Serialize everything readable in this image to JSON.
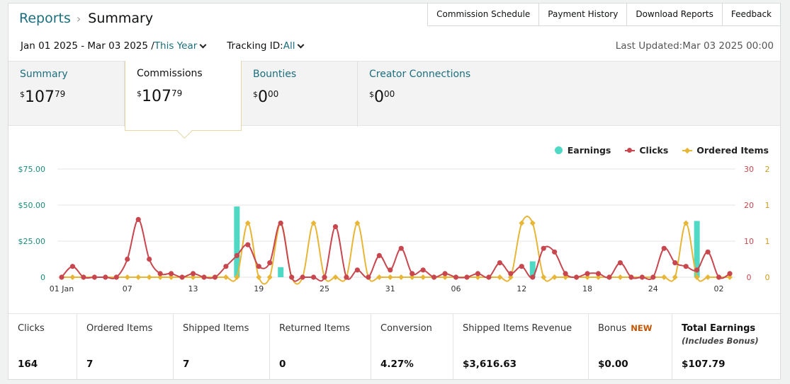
{
  "breadcrumb": {
    "parent": "Reports",
    "separator": "›",
    "current": "Summary"
  },
  "top_buttons": [
    "Commission Schedule",
    "Payment History",
    "Download Reports",
    "Feedback"
  ],
  "filters": {
    "date_range": "Jan 01 2025 - Mar 03 2025 /",
    "period": "This Year",
    "tracking_label": "Tracking ID:",
    "tracking_value": "All",
    "last_updated": "Last Updated:Mar 03 2025 00:00"
  },
  "tabs": [
    {
      "label": "Summary",
      "dollars": "107",
      "cents": "79",
      "currency": "$"
    },
    {
      "label": "Commissions",
      "dollars": "107",
      "cents": "79",
      "currency": "$"
    },
    {
      "label": "Bounties",
      "dollars": "0",
      "cents": "00",
      "currency": "$"
    },
    {
      "label": "Creator Connections",
      "dollars": "0",
      "cents": "00",
      "currency": "$"
    }
  ],
  "colors": {
    "earnings": "#4fd8c4",
    "clicks": "#c8474f",
    "ordered": "#e8b637",
    "teal_text": "#1b6e7e",
    "grid": "#e6e6e6"
  },
  "chart_data": {
    "type": "line",
    "legend": [
      "Earnings",
      "Clicks",
      "Ordered Items"
    ],
    "y_left": {
      "ticks": [
        "$75.00",
        "$50.00",
        "$25.00",
        "0"
      ],
      "range": [
        0,
        75
      ]
    },
    "y_right_clicks": {
      "ticks": [
        "30",
        "20",
        "10",
        "0"
      ],
      "range": [
        0,
        30
      ]
    },
    "y_right_orders": {
      "ticks": [
        "2",
        "1",
        "1",
        "0"
      ],
      "range": [
        0,
        2
      ]
    },
    "x_ticks": [
      {
        "label": "01 Jan",
        "day": 0
      },
      {
        "label": "07",
        "day": 6
      },
      {
        "label": "13",
        "day": 12
      },
      {
        "label": "19",
        "day": 18
      },
      {
        "label": "25",
        "day": 24
      },
      {
        "label": "31",
        "day": 30
      },
      {
        "label": "06",
        "day": 36
      },
      {
        "label": "12",
        "day": 42
      },
      {
        "label": "18",
        "day": 48
      },
      {
        "label": "24",
        "day": 54
      },
      {
        "label": "02",
        "day": 60
      }
    ],
    "days": 62,
    "clicks": [
      0,
      3,
      0,
      0,
      0,
      0,
      5,
      16,
      5,
      1,
      1,
      0,
      1,
      0,
      0,
      3,
      6,
      9,
      3,
      4,
      15,
      0,
      0,
      0,
      0,
      14,
      0,
      2,
      0,
      6,
      2,
      8,
      1,
      2,
      0,
      1,
      0,
      0,
      1,
      0,
      4,
      1,
      3,
      0,
      8,
      7,
      1,
      0,
      1,
      1,
      0,
      4,
      0,
      0,
      0,
      8,
      4,
      3,
      2,
      7,
      0,
      1
    ],
    "ordered_items": [
      0,
      0,
      0,
      0,
      0,
      0,
      0,
      0,
      0,
      0,
      0,
      0,
      0,
      0,
      0,
      0,
      0,
      1,
      0,
      0,
      1,
      0,
      0,
      1,
      0,
      0,
      0,
      1,
      0,
      0,
      0,
      0,
      0,
      0,
      0,
      0,
      0,
      0,
      0,
      0,
      0,
      0,
      1,
      1,
      0,
      0,
      0,
      0,
      0,
      0,
      0,
      0,
      0,
      0,
      0,
      0,
      0,
      1,
      0,
      0,
      0,
      0
    ],
    "earnings": [
      {
        "day": 16,
        "value": 49
      },
      {
        "day": 20,
        "value": 7
      },
      {
        "day": 43,
        "value": 11
      },
      {
        "day": 58,
        "value": 39
      }
    ]
  },
  "stats": [
    {
      "label": "Clicks",
      "value": "164"
    },
    {
      "label": "Ordered Items",
      "value": "7"
    },
    {
      "label": "Shipped Items",
      "value": "7"
    },
    {
      "label": "Returned Items",
      "value": "0"
    },
    {
      "label": "Conversion",
      "value": "4.27%"
    },
    {
      "label": "Shipped Items Revenue",
      "value": "$3,616.63"
    },
    {
      "label": "Bonus",
      "badge": "NEW",
      "value": "$0.00"
    },
    {
      "label": "Total Earnings",
      "sub": "(Includes Bonus)",
      "value": "$107.79"
    }
  ]
}
